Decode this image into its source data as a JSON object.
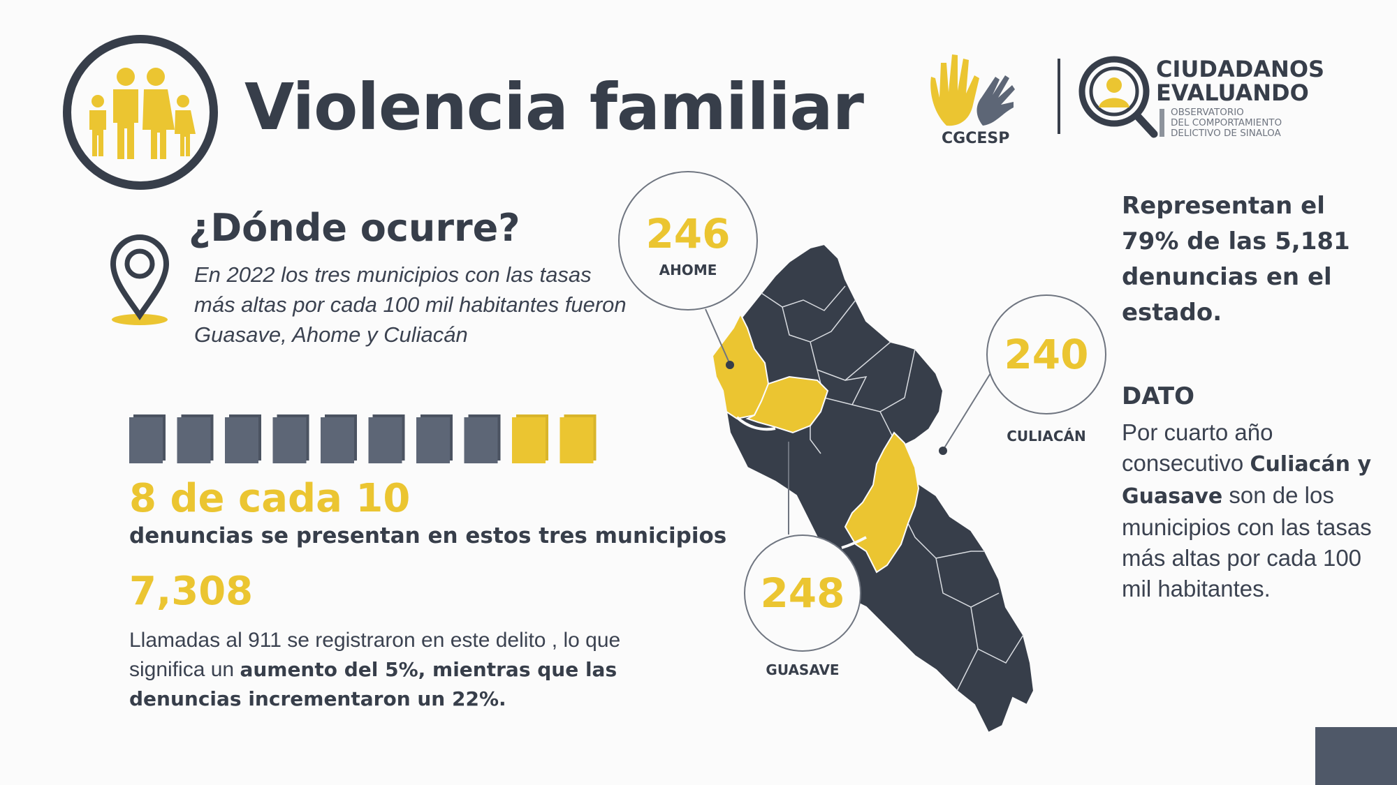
{
  "title": "Violencia familiar",
  "logos": {
    "cgcesp_text": "CGCESP",
    "ce_name_line1": "CIUDADANOS",
    "ce_name_line2": "EVALUANDO",
    "ce_sub_line1": "OBSERVATORIO",
    "ce_sub_line2": "DEL COMPORTAMIENTO",
    "ce_sub_line3": "DELICTIVO DE SINALOA"
  },
  "where": {
    "heading": "¿Dónde ocurre?",
    "intro": "En 2022 los tres municipios con las tasas más altas por cada 100 mil habitantes fueron Guasave, Ahome y Culiacán"
  },
  "ratio": {
    "highlighted": 2,
    "total": 10,
    "big_text": "8 de cada 10",
    "sub_text": "denuncias se presentan en estos tres municipios"
  },
  "calls": {
    "number": "7,308",
    "text_plain": "Llamadas al 911 se registraron en este delito , lo que significa un ",
    "text_bold": "aumento del 5%, mientras que las denuncias incrementaron un 22%."
  },
  "municipalities": [
    {
      "name": "AHOME",
      "value": "246"
    },
    {
      "name": "CULIACÁN",
      "value": "240"
    },
    {
      "name": "GUASAVE",
      "value": "248"
    }
  ],
  "represent": "Representan el 79% de las 5,181 denuncias en el estado.",
  "dato": {
    "heading": "DATO",
    "text1": "Por cuarto año consecutivo ",
    "bold": "Culiacán y Guasave",
    "text2": " son de los municipios con las tasas más altas por cada 100 mil habitantes."
  },
  "colors": {
    "yellow": "#ebc531",
    "dark": "#373e4a",
    "slate": "#5d6676"
  },
  "icons": [
    "family-icon",
    "location-pin-icon",
    "hand-logo-icon",
    "magnifier-person-icon",
    "folder-icon"
  ]
}
